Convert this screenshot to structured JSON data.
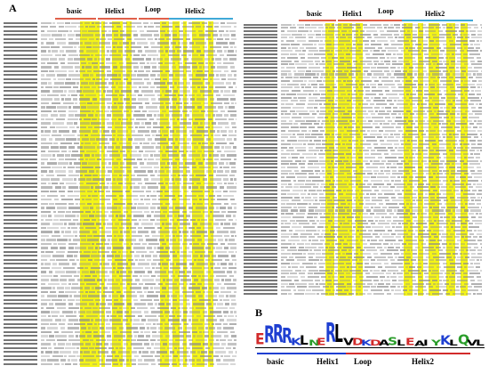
{
  "panels": {
    "a_label": "A",
    "b_label": "B"
  },
  "domains": {
    "basic": "basic",
    "helix1": "Helix1",
    "loop": "Loop",
    "helix2": "Helix2"
  },
  "colors": {
    "basic_bar": "#e0604a",
    "helix1_bar": "#e0604a",
    "loop_bar": "#e0604a",
    "helix2_bar": "#3fa9d8",
    "highlight": "#f4f418",
    "logo_underline_basic": "#1f3fd1",
    "logo_underline_helix1": "#1f3fd1",
    "logo_underline_loop": "#d22b2b",
    "logo_underline_helix2": "#d22b2b"
  },
  "logo": {
    "letters": [
      "E",
      "R",
      "R",
      "R",
      "K",
      "L",
      "N",
      "E",
      "R",
      "L",
      "V",
      "D",
      "K",
      "D",
      "A",
      "S",
      "L",
      "E",
      "A",
      "I",
      "Y",
      "K",
      "L",
      "Q",
      "V",
      "L"
    ],
    "letter_colors": [
      "#d22b2b",
      "#1f3fd1",
      "#1f3fd1",
      "#1f3fd1",
      "#1f3fd1",
      "#000000",
      "#2a9d2a",
      "#d22b2b",
      "#1f3fd1",
      "#000000",
      "#000000",
      "#d22b2b",
      "#1f3fd1",
      "#d22b2b",
      "#000000",
      "#2a9d2a",
      "#000000",
      "#d22b2b",
      "#000000",
      "#000000",
      "#2a9d2a",
      "#1f3fd1",
      "#000000",
      "#2a9d2a",
      "#000000",
      "#000000"
    ],
    "heights": [
      0.55,
      0.85,
      0.9,
      0.75,
      0.35,
      0.45,
      0.3,
      0.35,
      0.95,
      0.9,
      0.35,
      0.35,
      0.3,
      0.3,
      0.3,
      0.4,
      0.3,
      0.35,
      0.25,
      0.3,
      0.3,
      0.45,
      0.3,
      0.5,
      0.3,
      0.3
    ]
  },
  "alignment": {
    "left_rows": 86,
    "right_rows": 82
  }
}
